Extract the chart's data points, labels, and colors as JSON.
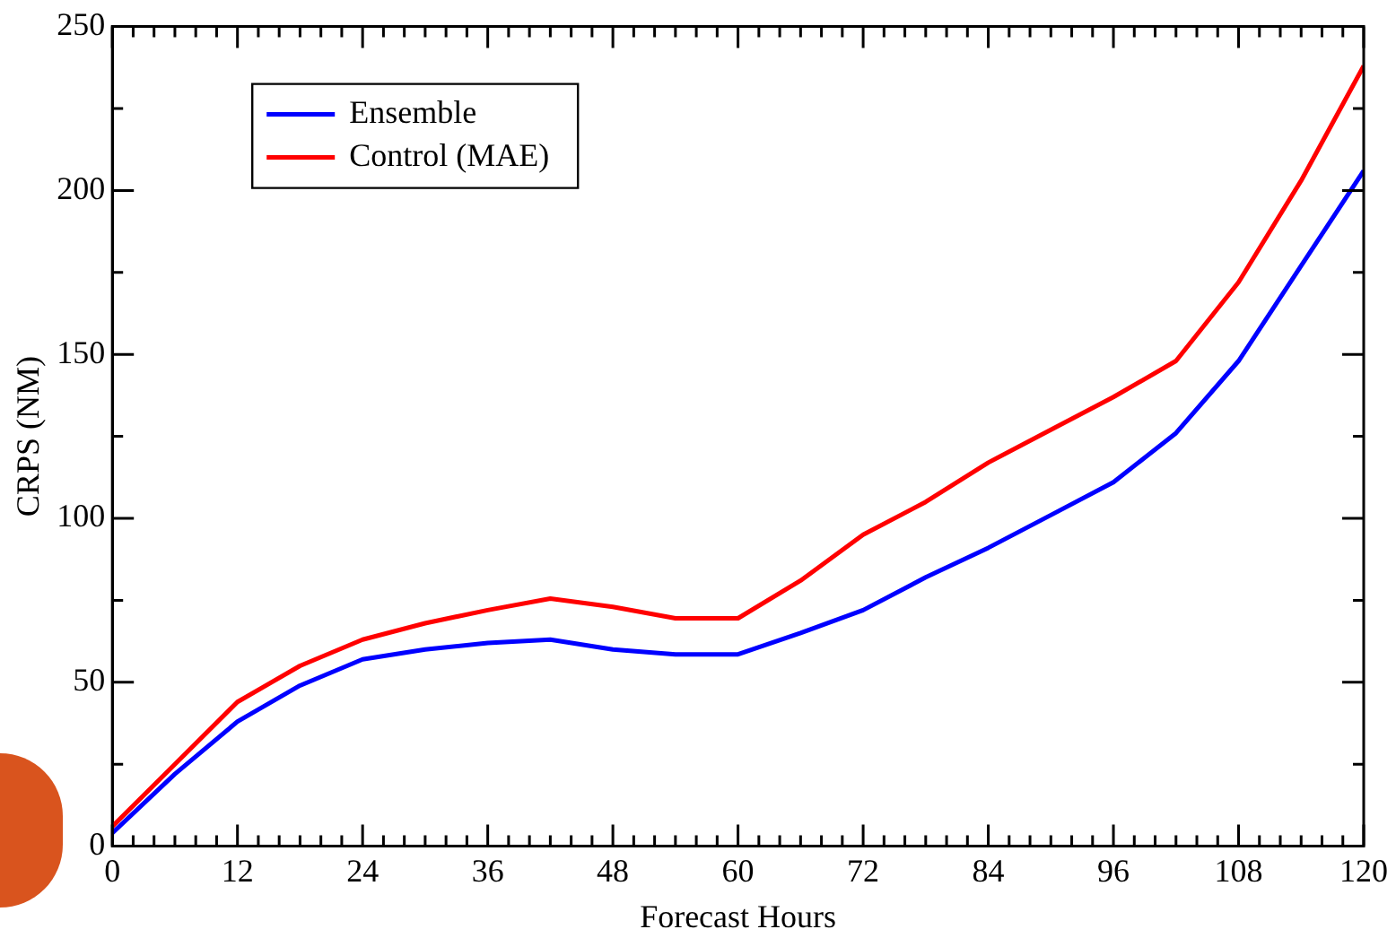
{
  "chart_data": {
    "type": "line",
    "xlabel": "Forecast Hours",
    "ylabel": "CRPS (NM)",
    "x": [
      0,
      6,
      12,
      18,
      24,
      30,
      36,
      42,
      48,
      54,
      60,
      66,
      72,
      78,
      84,
      90,
      96,
      102,
      108,
      114,
      120
    ],
    "series": [
      {
        "name": "Ensemble",
        "color": "#0000ff",
        "values": [
          4,
          22,
          38,
          49,
          57,
          60,
          62,
          63,
          60,
          58.5,
          58.5,
          65,
          72,
          82,
          91,
          101,
          111,
          126,
          148,
          177,
          206
        ]
      },
      {
        "name": "Control (MAE)",
        "color": "#ff0000",
        "values": [
          6,
          25,
          44,
          55,
          63,
          68,
          72,
          75.5,
          73,
          69.5,
          69.5,
          81,
          95,
          105,
          117,
          127,
          137,
          148,
          172,
          203,
          238
        ]
      }
    ],
    "xlim": [
      0,
      120
    ],
    "xticks": [
      0,
      {
        "value": 2,
        "label": null
      },
      {
        "value": 4,
        "label": null
      },
      {
        "value": 6,
        "label": null
      },
      {
        "value": 8,
        "label": null
      },
      {
        "value": 10,
        "label": null
      },
      12,
      {
        "value": 14,
        "label": null
      },
      {
        "value": 16,
        "label": null
      },
      {
        "value": 18,
        "label": null
      },
      {
        "value": 20,
        "label": null
      },
      {
        "value": 22,
        "label": null
      },
      24,
      {
        "value": 26,
        "label": null
      },
      {
        "value": 28,
        "label": null
      },
      {
        "value": 30,
        "label": null
      },
      {
        "value": 32,
        "label": null
      },
      {
        "value": 34,
        "label": null
      },
      36,
      {
        "value": 38,
        "label": null
      },
      {
        "value": 40,
        "label": null
      },
      {
        "value": 42,
        "label": null
      },
      {
        "value": 44,
        "label": null
      },
      {
        "value": 46,
        "label": null
      },
      48,
      {
        "value": 50,
        "label": null
      },
      {
        "value": 52,
        "label": null
      },
      {
        "value": 54,
        "label": null
      },
      {
        "value": 56,
        "label": null
      },
      {
        "value": 58,
        "label": null
      },
      60,
      {
        "value": 62,
        "label": null
      },
      {
        "value": 64,
        "label": null
      },
      {
        "value": 66,
        "label": null
      },
      {
        "value": 68,
        "label": null
      },
      {
        "value": 70,
        "label": null
      },
      72,
      {
        "value": 74,
        "label": null
      },
      {
        "value": 76,
        "label": null
      },
      {
        "value": 78,
        "label": null
      },
      {
        "value": 80,
        "label": null
      },
      {
        "value": 82,
        "label": null
      },
      84,
      {
        "value": 86,
        "label": null
      },
      {
        "value": 88,
        "label": null
      },
      {
        "value": 90,
        "label": null
      },
      {
        "value": 92,
        "label": null
      },
      {
        "value": 94,
        "label": null
      },
      96,
      {
        "value": 98,
        "label": null
      },
      {
        "value": 100,
        "label": null
      },
      {
        "value": 102,
        "label": null
      },
      {
        "value": 104,
        "label": null
      },
      {
        "value": 106,
        "label": null
      },
      108,
      {
        "value": 110,
        "label": null
      },
      {
        "value": 112,
        "label": null
      },
      {
        "value": 114,
        "label": null
      },
      {
        "value": 116,
        "label": null
      },
      {
        "value": 118,
        "label": null
      },
      120
    ],
    "ylim": [
      0,
      250
    ],
    "yticks": [
      0,
      {
        "value": 25,
        "label": null
      },
      50,
      {
        "value": 75,
        "label": null
      },
      100,
      {
        "value": 125,
        "label": null
      },
      150,
      {
        "value": 175,
        "label": null
      },
      200,
      {
        "value": 225,
        "label": null
      },
      250
    ],
    "legend": "top left",
    "marker": "none",
    "line_style": "solid",
    "grid": false
  }
}
